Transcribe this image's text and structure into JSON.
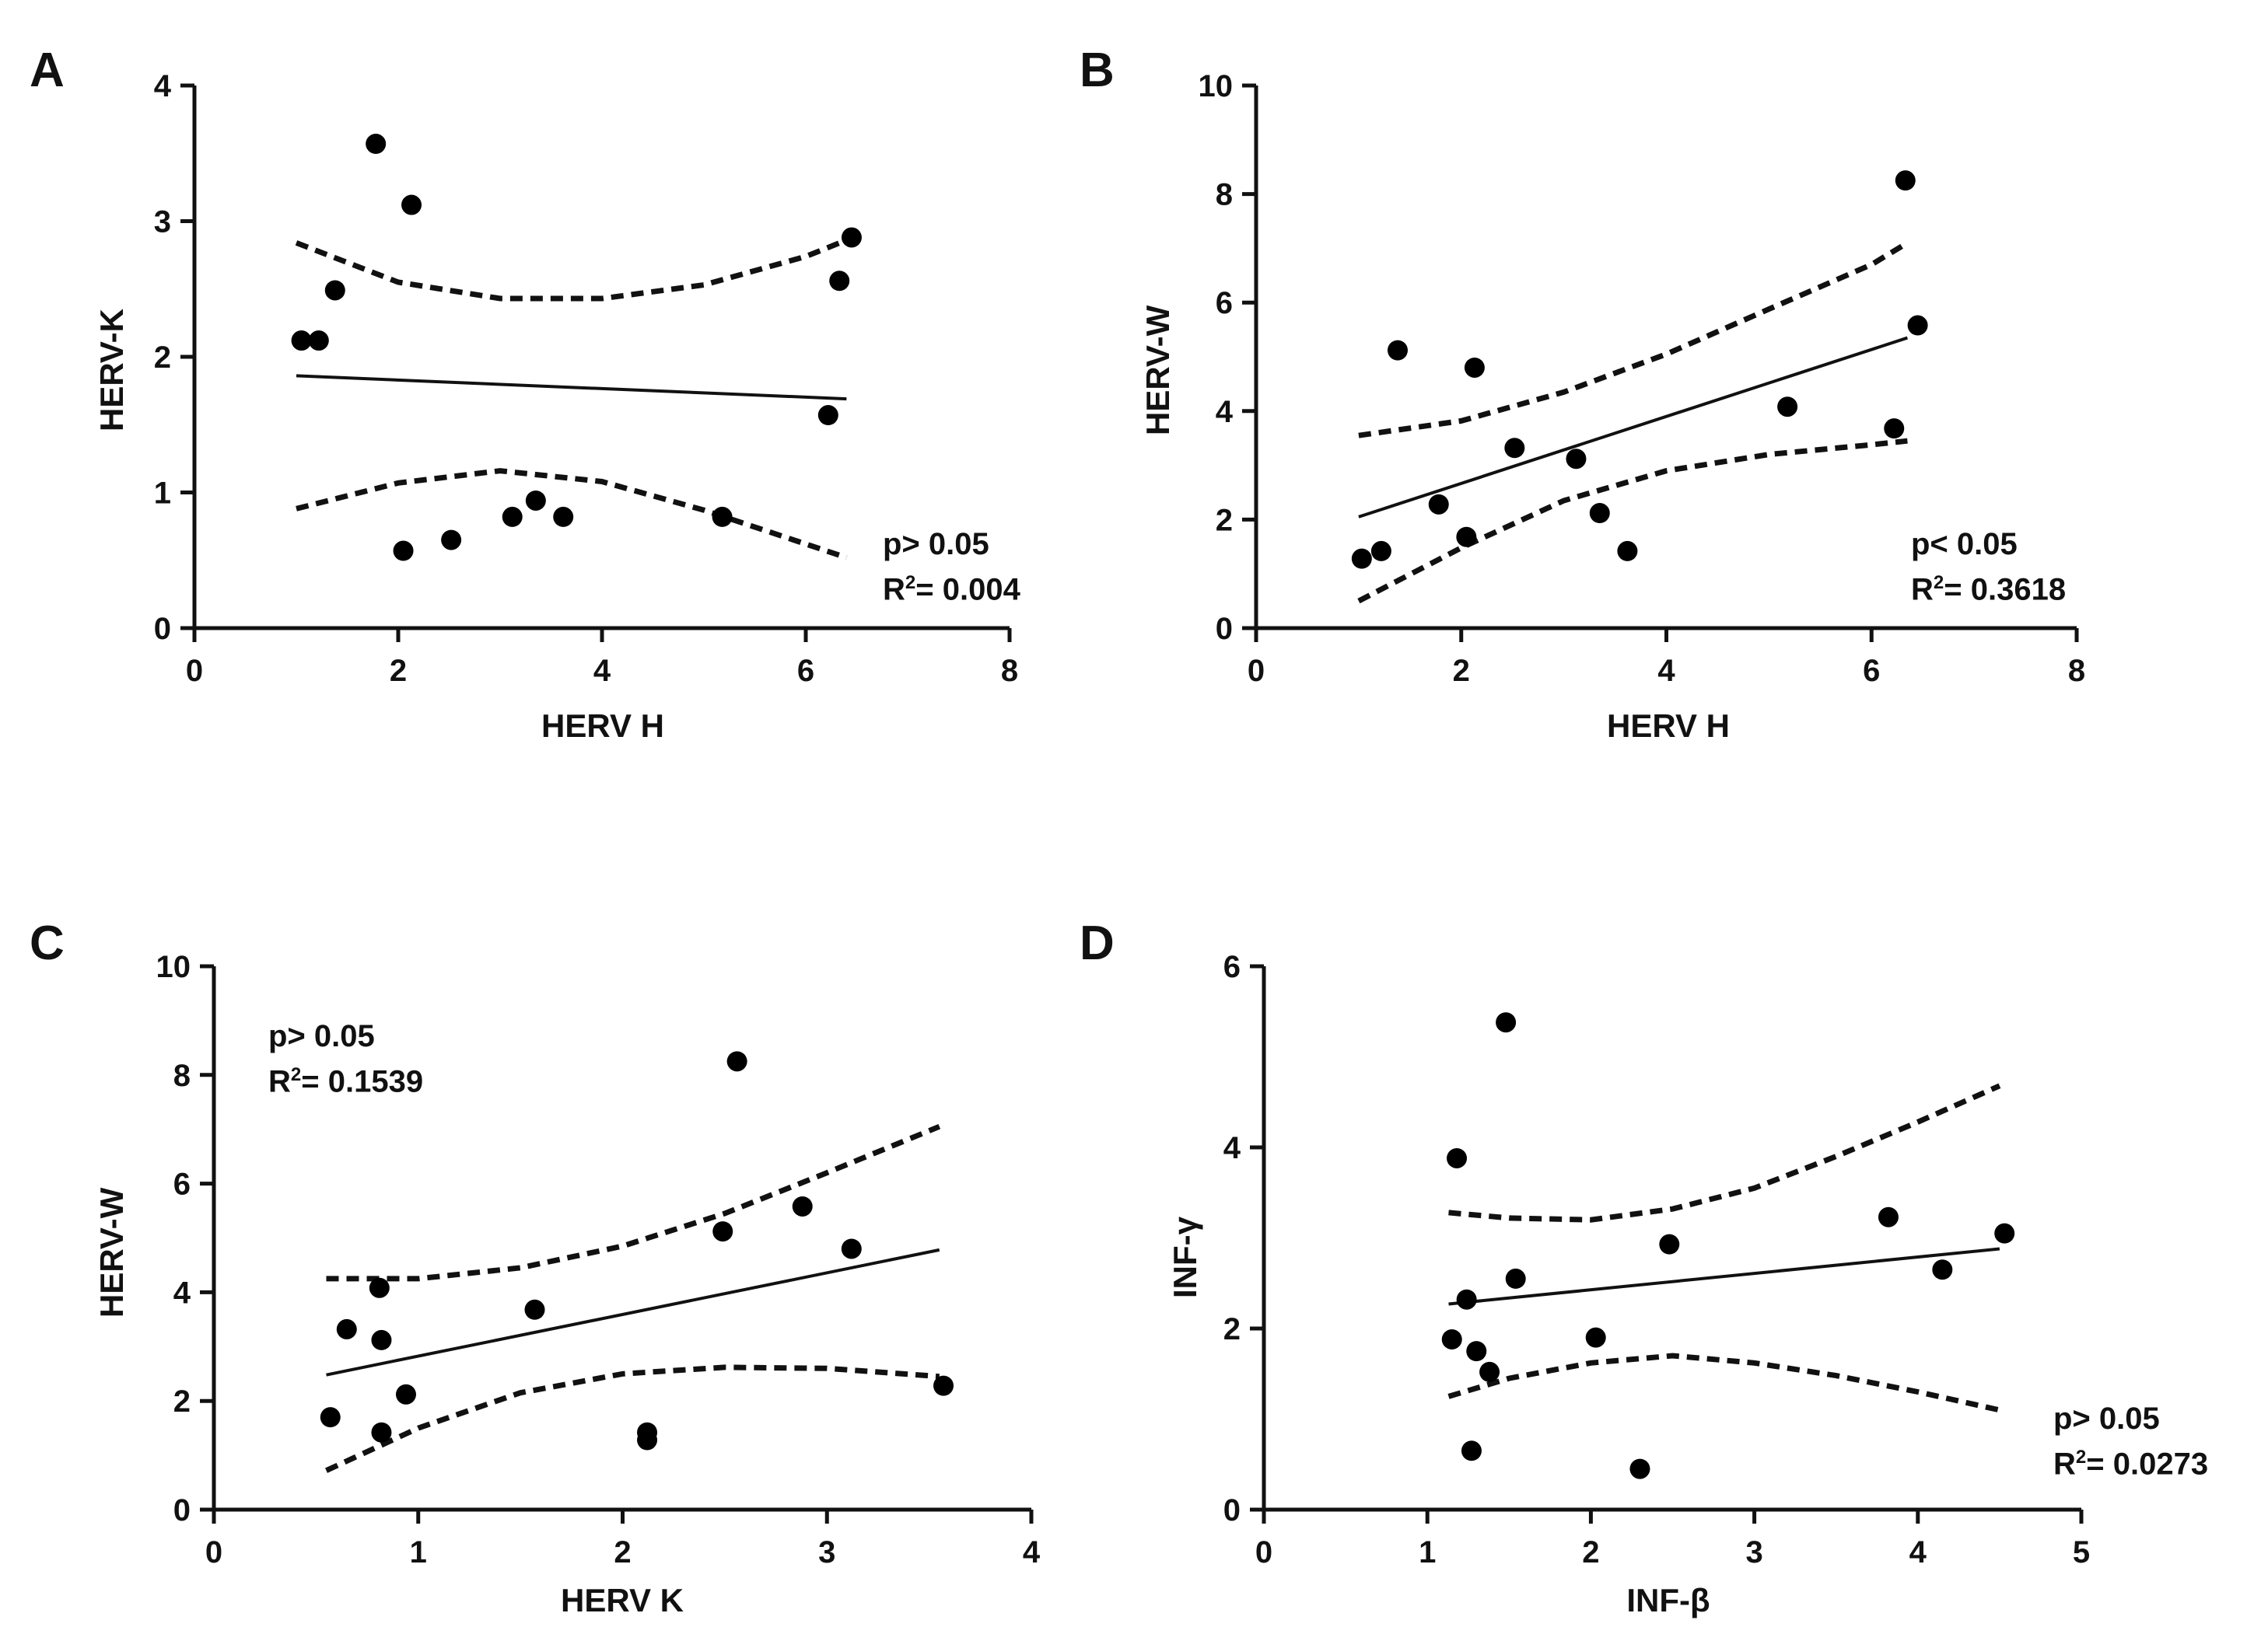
{
  "chart_data": [
    {
      "id": "A",
      "type": "scatter",
      "panel_label": "A",
      "xlabel": "HERV H",
      "ylabel": "HERV-K",
      "xlim": [
        0,
        8
      ],
      "ylim": [
        0,
        4
      ],
      "xticks": [
        0,
        2,
        4,
        6,
        8
      ],
      "yticks": [
        0,
        1,
        2,
        3,
        4
      ],
      "stats": {
        "p_text": "p> 0.05",
        "r2_prefix": "R",
        "r2_exp": "2",
        "r2_text": "= 0.004"
      },
      "points": [
        [
          1.05,
          2.12
        ],
        [
          1.22,
          2.12
        ],
        [
          1.38,
          2.49
        ],
        [
          1.78,
          3.57
        ],
        [
          2.13,
          3.12
        ],
        [
          2.05,
          0.57
        ],
        [
          2.52,
          0.65
        ],
        [
          3.12,
          0.82
        ],
        [
          3.35,
          0.94
        ],
        [
          3.62,
          0.82
        ],
        [
          5.18,
          0.82
        ],
        [
          6.22,
          1.57
        ],
        [
          6.33,
          2.56
        ],
        [
          6.45,
          2.88
        ]
      ],
      "fit": {
        "x": [
          1.0,
          6.4
        ],
        "y": [
          1.86,
          1.69
        ]
      },
      "ci_upper": [
        [
          1.0,
          2.84
        ],
        [
          2.0,
          2.55
        ],
        [
          3.0,
          2.43
        ],
        [
          4.0,
          2.43
        ],
        [
          5.0,
          2.53
        ],
        [
          6.0,
          2.74
        ],
        [
          6.4,
          2.86
        ]
      ],
      "ci_lower": [
        [
          1.0,
          0.88
        ],
        [
          2.0,
          1.07
        ],
        [
          3.0,
          1.16
        ],
        [
          4.0,
          1.08
        ],
        [
          5.0,
          0.87
        ],
        [
          6.0,
          0.62
        ],
        [
          6.4,
          0.52
        ]
      ]
    },
    {
      "id": "B",
      "type": "scatter",
      "panel_label": "B",
      "xlabel": "HERV H",
      "ylabel": "HERV-W",
      "xlim": [
        0,
        8
      ],
      "ylim": [
        0,
        10
      ],
      "xticks": [
        0,
        2,
        4,
        6,
        8
      ],
      "yticks": [
        0,
        2,
        4,
        6,
        8,
        10
      ],
      "stats": {
        "p_text": "p< 0.05",
        "r2_prefix": "R",
        "r2_exp": "2",
        "r2_text": "= 0.3618"
      },
      "points": [
        [
          1.03,
          1.28
        ],
        [
          1.22,
          1.42
        ],
        [
          1.38,
          5.12
        ],
        [
          1.78,
          2.28
        ],
        [
          2.05,
          1.68
        ],
        [
          2.13,
          4.8
        ],
        [
          2.52,
          3.32
        ],
        [
          3.12,
          3.12
        ],
        [
          3.35,
          2.12
        ],
        [
          3.62,
          1.42
        ],
        [
          5.18,
          4.08
        ],
        [
          6.22,
          3.68
        ],
        [
          6.33,
          8.25
        ],
        [
          6.45,
          5.58
        ]
      ],
      "fit": {
        "x": [
          1.0,
          6.35
        ],
        "y": [
          2.05,
          5.35
        ]
      },
      "ci_upper": [
        [
          1.0,
          3.55
        ],
        [
          2.0,
          3.82
        ],
        [
          3.0,
          4.35
        ],
        [
          4.0,
          5.05
        ],
        [
          5.0,
          5.88
        ],
        [
          6.0,
          6.7
        ],
        [
          6.35,
          7.1
        ]
      ],
      "ci_lower": [
        [
          1.0,
          0.5
        ],
        [
          2.0,
          1.48
        ],
        [
          3.0,
          2.35
        ],
        [
          4.0,
          2.9
        ],
        [
          5.0,
          3.2
        ],
        [
          6.0,
          3.38
        ],
        [
          6.35,
          3.45
        ]
      ]
    },
    {
      "id": "C",
      "type": "scatter",
      "panel_label": "C",
      "xlabel": "HERV K",
      "ylabel": "HERV-W",
      "xlim": [
        0,
        4
      ],
      "ylim": [
        0,
        10
      ],
      "xticks": [
        0,
        1,
        2,
        3,
        4
      ],
      "yticks": [
        0,
        2,
        4,
        6,
        8,
        10
      ],
      "stats": {
        "p_text": "p> 0.05",
        "r2_prefix": "R",
        "r2_exp": "2",
        "r2_text": "= 0.1539"
      },
      "points": [
        [
          0.57,
          1.7
        ],
        [
          0.65,
          3.32
        ],
        [
          0.81,
          4.08
        ],
        [
          0.82,
          3.12
        ],
        [
          0.82,
          1.42
        ],
        [
          0.94,
          2.12
        ],
        [
          1.57,
          3.68
        ],
        [
          2.12,
          1.42
        ],
        [
          2.12,
          1.28
        ],
        [
          2.49,
          5.12
        ],
        [
          2.56,
          8.25
        ],
        [
          2.88,
          5.58
        ],
        [
          3.12,
          4.8
        ],
        [
          3.57,
          2.28
        ]
      ],
      "fit": {
        "x": [
          0.55,
          3.55
        ],
        "y": [
          2.48,
          4.78
        ]
      },
      "ci_upper": [
        [
          0.55,
          4.25
        ],
        [
          1.0,
          4.25
        ],
        [
          1.5,
          4.45
        ],
        [
          2.0,
          4.85
        ],
        [
          2.5,
          5.45
        ],
        [
          3.0,
          6.2
        ],
        [
          3.55,
          7.05
        ]
      ],
      "ci_lower": [
        [
          0.55,
          0.72
        ],
        [
          1.0,
          1.5
        ],
        [
          1.5,
          2.15
        ],
        [
          2.0,
          2.5
        ],
        [
          2.5,
          2.62
        ],
        [
          3.0,
          2.6
        ],
        [
          3.55,
          2.45
        ]
      ]
    },
    {
      "id": "D",
      "type": "scatter",
      "panel_label": "D",
      "xlabel": "INF-β",
      "ylabel": "INF-γ",
      "xlim": [
        0,
        5
      ],
      "ylim": [
        0,
        6
      ],
      "xticks": [
        0,
        1,
        2,
        3,
        4,
        5
      ],
      "yticks": [
        0,
        2,
        4,
        6
      ],
      "stats": {
        "p_text": "p> 0.05",
        "r2_prefix": "R",
        "r2_exp": "2",
        "r2_text": "= 0.0273"
      },
      "points": [
        [
          1.15,
          1.88
        ],
        [
          1.18,
          3.88
        ],
        [
          1.24,
          2.32
        ],
        [
          1.27,
          0.65
        ],
        [
          1.3,
          1.75
        ],
        [
          1.38,
          1.52
        ],
        [
          1.48,
          5.38
        ],
        [
          1.54,
          2.55
        ],
        [
          2.03,
          1.9
        ],
        [
          2.3,
          0.45
        ],
        [
          2.48,
          2.93
        ],
        [
          3.82,
          3.23
        ],
        [
          4.15,
          2.65
        ],
        [
          4.53,
          3.05
        ]
      ],
      "fit": {
        "x": [
          1.13,
          4.5
        ],
        "y": [
          2.27,
          2.88
        ]
      },
      "ci_upper": [
        [
          1.13,
          3.28
        ],
        [
          1.5,
          3.22
        ],
        [
          2.0,
          3.2
        ],
        [
          2.5,
          3.32
        ],
        [
          3.0,
          3.55
        ],
        [
          3.5,
          3.9
        ],
        [
          4.0,
          4.28
        ],
        [
          4.5,
          4.68
        ]
      ],
      "ci_lower": [
        [
          1.13,
          1.25
        ],
        [
          1.5,
          1.45
        ],
        [
          2.0,
          1.62
        ],
        [
          2.5,
          1.7
        ],
        [
          3.0,
          1.62
        ],
        [
          3.5,
          1.48
        ],
        [
          4.0,
          1.3
        ],
        [
          4.5,
          1.1
        ]
      ]
    }
  ]
}
